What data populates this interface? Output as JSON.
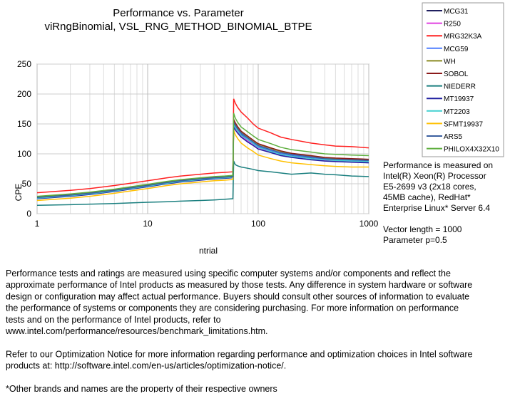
{
  "chart_data": {
    "type": "line",
    "title": [
      "Performance vs. Parameter",
      "viRngBinomial, VSL_RNG_METHOD_BINOMIAL_BTPE"
    ],
    "x_label": "ntrial",
    "y_label": "CPE",
    "x": [
      1,
      2,
      3,
      5,
      7,
      10,
      15,
      20,
      30,
      40,
      50,
      59,
      60,
      62,
      65,
      70,
      80,
      90,
      100,
      130,
      160,
      200,
      300,
      400,
      500,
      700,
      1000
    ],
    "xlim": [
      1,
      1000
    ],
    "xticks": [
      1,
      10,
      100,
      1000
    ],
    "xscale": "log",
    "ylim": [
      0,
      250
    ],
    "yticks": [
      0,
      50,
      100,
      150,
      200,
      250
    ],
    "grid": true,
    "legend": "top-right",
    "series": [
      {
        "name": "MCG31",
        "color": "#1f1f5f",
        "values": [
          27,
          31,
          34,
          39,
          43,
          47,
          52,
          55,
          58,
          60,
          61,
          62,
          150,
          145,
          140,
          132,
          125,
          118,
          112,
          105,
          100,
          97,
          93,
          90,
          89,
          88,
          87
        ]
      },
      {
        "name": "R250",
        "color": "#e040e0",
        "values": [
          26,
          30,
          33,
          38,
          42,
          46,
          51,
          54,
          57,
          59,
          60,
          61,
          148,
          143,
          138,
          130,
          122,
          116,
          110,
          103,
          98,
          95,
          91,
          89,
          88,
          87,
          86
        ]
      },
      {
        "name": "MRG32K3A",
        "color": "#ff2020",
        "values": [
          35,
          39,
          42,
          47,
          51,
          55,
          60,
          63,
          66,
          68,
          69,
          70,
          192,
          185,
          178,
          170,
          160,
          150,
          143,
          135,
          128,
          124,
          118,
          115,
          113,
          112,
          110
        ]
      },
      {
        "name": "MCG59",
        "color": "#4f7fff",
        "values": [
          26,
          30,
          33,
          38,
          42,
          46,
          51,
          54,
          57,
          59,
          60,
          61,
          152,
          147,
          141,
          134,
          126,
          119,
          113,
          106,
          101,
          98,
          94,
          91,
          90,
          89,
          88
        ]
      },
      {
        "name": "WH",
        "color": "#8a8a20",
        "values": [
          28,
          32,
          35,
          40,
          44,
          48,
          53,
          56,
          59,
          61,
          62,
          63,
          155,
          150,
          144,
          137,
          129,
          122,
          116,
          109,
          104,
          100,
          96,
          93,
          92,
          91,
          90
        ]
      },
      {
        "name": "SOBOL",
        "color": "#8b1a1a",
        "values": [
          27,
          31,
          34,
          39,
          43,
          47,
          52,
          55,
          58,
          60,
          61,
          62,
          158,
          152,
          146,
          138,
          130,
          123,
          117,
          110,
          105,
          101,
          97,
          94,
          93,
          92,
          91
        ]
      },
      {
        "name": "NIEDERR",
        "color": "#1a7f7f",
        "values": [
          14,
          15,
          16,
          17,
          18,
          19,
          20,
          21,
          22,
          23,
          24,
          25,
          88,
          82,
          80,
          78,
          76,
          74,
          72,
          70,
          68,
          66,
          68,
          66,
          65,
          63,
          62
        ]
      },
      {
        "name": "MT19937",
        "color": "#2020a0",
        "values": [
          25,
          29,
          32,
          37,
          41,
          45,
          50,
          53,
          56,
          58,
          59,
          60,
          145,
          140,
          135,
          128,
          120,
          114,
          108,
          102,
          97,
          94,
          90,
          88,
          87,
          86,
          85
        ]
      },
      {
        "name": "MT2203",
        "color": "#40d0d0",
        "values": [
          26,
          30,
          33,
          38,
          42,
          46,
          51,
          54,
          57,
          59,
          60,
          61,
          150,
          144,
          139,
          131,
          124,
          117,
          111,
          104,
          99,
          96,
          92,
          90,
          89,
          88,
          87
        ]
      },
      {
        "name": "SFMT19937",
        "color": "#ffc000",
        "values": [
          22,
          26,
          29,
          34,
          38,
          42,
          47,
          50,
          53,
          55,
          56,
          57,
          140,
          132,
          126,
          118,
          110,
          104,
          98,
          92,
          88,
          85,
          82,
          80,
          79,
          78,
          78
        ]
      },
      {
        "name": "ARS5",
        "color": "#3a5f9f",
        "values": [
          27,
          31,
          34,
          39,
          43,
          47,
          52,
          55,
          58,
          60,
          61,
          62,
          153,
          148,
          142,
          135,
          127,
          120,
          114,
          107,
          102,
          99,
          95,
          92,
          91,
          90,
          89
        ]
      },
      {
        "name": "PHILOX4X32X10",
        "color": "#5faf3f",
        "values": [
          29,
          33,
          36,
          41,
          45,
          49,
          54,
          57,
          60,
          62,
          63,
          64,
          168,
          160,
          153,
          145,
          137,
          130,
          124,
          117,
          111,
          107,
          103,
          100,
          99,
          98,
          97
        ]
      }
    ]
  },
  "side_note": [
    "Performance is measured on",
    "Intel(R) Xeon(R) Processor",
    "E5-2699 v3 (2x18 cores,",
    "45MB cache), RedHat*",
    "Enterprise Linux* Server 6.4",
    "",
    "Vector length = 1000",
    "Parameter p=0.5"
  ],
  "footer": [
    "Performance tests and ratings are measured using specific computer systems and/or components and reflect the",
    "approximate performance of Intel products as measured by those tests. Any difference in system hardware or software",
    "design or configuration may affect actual performance. Buyers should consult other sources of information to evaluate",
    "the performance of systems or components they are considering purchasing. For more information on performance",
    "tests and on the performance of Intel products, refer to",
    "www.intel.com/performance/resources/benchmark_limitations.htm.",
    "",
    "Refer to our Optimization Notice for more information regarding performance and optimization choices in Intel software",
    "products at: http://software.intel.com/en-us/articles/optimization-notice/.",
    "",
    "*Other brands and names are the property of their respective owners"
  ]
}
